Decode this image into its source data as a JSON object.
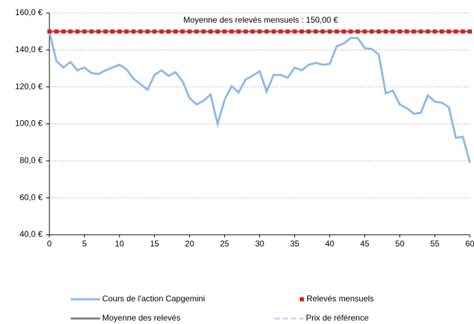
{
  "chart_data": {
    "type": "line",
    "annotation": "Moyenne des relevés mensuels : 150,00 €",
    "x": [
      0,
      1,
      2,
      3,
      4,
      5,
      6,
      7,
      8,
      9,
      10,
      11,
      12,
      13,
      14,
      15,
      16,
      17,
      18,
      19,
      20,
      21,
      22,
      23,
      24,
      25,
      26,
      27,
      28,
      29,
      30,
      31,
      32,
      33,
      34,
      35,
      36,
      37,
      38,
      39,
      40,
      41,
      42,
      43,
      44,
      45,
      46,
      47,
      48,
      49,
      50,
      51,
      52,
      53,
      54,
      55,
      56,
      57,
      58,
      59,
      60
    ],
    "series": [
      {
        "name": "Cours de l'action Capgemini",
        "color": "#8db8e8",
        "style": "line",
        "values": [
          150,
          134,
          130.5,
          133.5,
          129,
          130.5,
          127.5,
          127,
          129,
          130.5,
          132,
          129.5,
          124.5,
          121.5,
          118.5,
          126.5,
          129,
          126,
          128,
          123,
          114,
          110.5,
          112.5,
          116,
          100,
          113,
          120.5,
          117,
          124,
          126,
          128.5,
          117.5,
          126.5,
          126.5,
          125,
          130.5,
          129,
          132,
          133,
          132,
          132.5,
          142,
          143.5,
          146.5,
          146.5,
          141,
          140.5,
          137.5,
          116.5,
          118,
          110.5,
          108.5,
          105.5,
          106,
          115.5,
          112,
          111.5,
          109,
          92.5,
          93,
          79
        ]
      },
      {
        "name": "Relevés mensuels",
        "color": "#e41a1c",
        "style": "markers",
        "values": [
          150,
          150,
          150,
          150,
          150,
          150,
          150,
          150,
          150,
          150,
          150,
          150,
          150,
          150,
          150,
          150,
          150,
          150,
          150,
          150,
          150,
          150,
          150,
          150,
          150,
          150,
          150,
          150,
          150,
          150,
          150,
          150,
          150,
          150,
          150,
          150,
          150,
          150,
          150,
          150,
          150,
          150,
          150,
          150,
          150,
          150,
          150,
          150,
          150,
          150,
          150,
          150,
          150,
          150,
          150,
          150,
          150,
          150,
          150,
          150,
          150
        ]
      },
      {
        "name": "Moyenne des relevés",
        "color": "#808080",
        "style": "line",
        "values": [
          150,
          150,
          150,
          150,
          150,
          150,
          150,
          150,
          150,
          150,
          150,
          150,
          150,
          150,
          150,
          150,
          150,
          150,
          150,
          150,
          150,
          150,
          150,
          150,
          150,
          150,
          150,
          150,
          150,
          150,
          150,
          150,
          150,
          150,
          150,
          150,
          150,
          150,
          150,
          150,
          150,
          150,
          150,
          150,
          150,
          150,
          150,
          150,
          150,
          150,
          150,
          150,
          150,
          150,
          150,
          150,
          150,
          150,
          150,
          150,
          150
        ]
      },
      {
        "name": "Prix de référence",
        "color": "#c5d9f1",
        "style": "dashed",
        "values": [
          150,
          150,
          150,
          150,
          150,
          150,
          150,
          150,
          150,
          150,
          150,
          150,
          150,
          150,
          150,
          150,
          150,
          150,
          150,
          150,
          150,
          150,
          150,
          150,
          150,
          150,
          150,
          150,
          150,
          150,
          150,
          150,
          150,
          150,
          150,
          150,
          150,
          150,
          150,
          150,
          150,
          150,
          150,
          150,
          150,
          150,
          150,
          150,
          150,
          150,
          150,
          150,
          150,
          150,
          150,
          150,
          150,
          150,
          150,
          150,
          150
        ]
      }
    ],
    "xlim": [
      0,
      60
    ],
    "xticks": [
      0,
      5,
      10,
      15,
      20,
      25,
      30,
      35,
      40,
      45,
      50,
      55,
      60
    ],
    "ylim": [
      40,
      160
    ],
    "yticks": [
      {
        "value": 40,
        "label": "40,0 €"
      },
      {
        "value": 60,
        "label": "60,0 €"
      },
      {
        "value": 80,
        "label": "80,0 €"
      },
      {
        "value": 100,
        "label": "100,0 €"
      },
      {
        "value": 120,
        "label": "120,0 €"
      },
      {
        "value": 140,
        "label": "140,0 €"
      },
      {
        "value": 160,
        "label": "160,0 €"
      }
    ],
    "grid": true
  }
}
